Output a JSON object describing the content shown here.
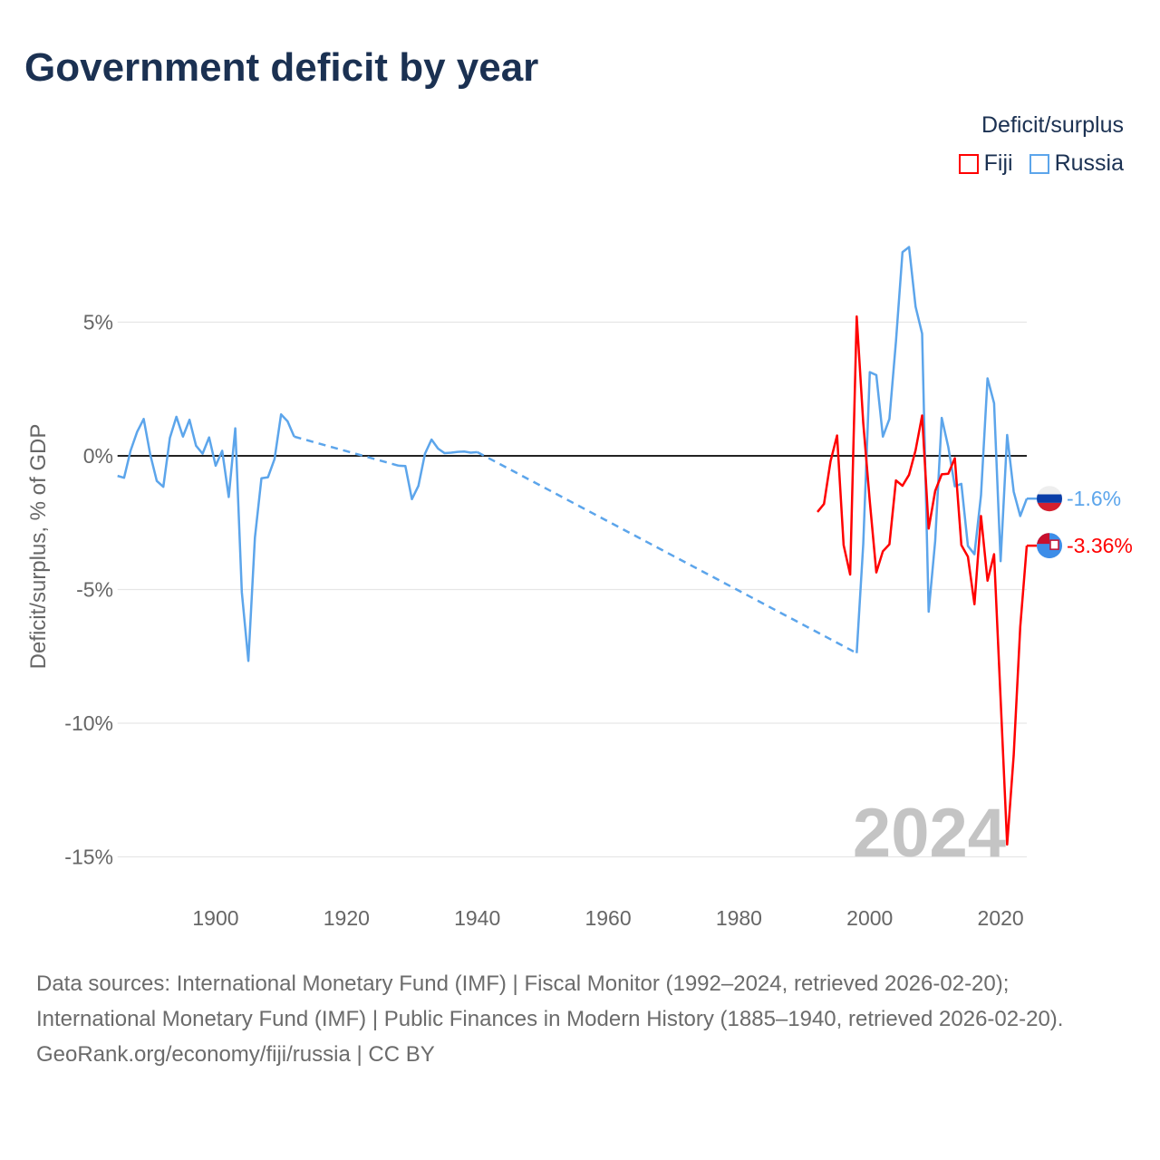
{
  "title": "Government deficit by year",
  "legend": {
    "title": "Deficit/surplus",
    "items": [
      {
        "name": "Fiji",
        "color": "#ff0000"
      },
      {
        "name": "Russia",
        "color": "#5ca5eb"
      }
    ]
  },
  "footer": {
    "sources": "Data sources: International Monetary Fund (IMF) | Fiscal Monitor (1992–2024, retrieved 2026-02-20); International Monetary Fund (IMF) | Public Finances in Modern History (1885–1940, retrieved 2026-02-20).",
    "credit": "GeoRank.org/economy/fiji/russia | CC BY"
  },
  "chart_data": {
    "type": "line",
    "title": "Government deficit by year",
    "xlabel": "",
    "ylabel": "Deficit/surplus, % of GDP",
    "xlim": [
      1885,
      2024
    ],
    "ylim": [
      -15,
      7.8
    ],
    "x_ticks": [
      1900,
      1920,
      1940,
      1960,
      1980,
      2000,
      2020
    ],
    "x_tick_labels": [
      "1900",
      "1920",
      "1940",
      "1960",
      "1980",
      "2000",
      "2020"
    ],
    "y_ticks": [
      5,
      0,
      -5,
      -10,
      -15
    ],
    "y_tick_labels": [
      "5%",
      "0%",
      "-5%",
      "-10%",
      "-15%"
    ],
    "grid": true,
    "watermark_year": "2024",
    "legend_position": "top-right",
    "series": [
      {
        "name": "Russia",
        "color": "#5ca5eb",
        "end_label": "-1.6%",
        "points": [
          [
            1885,
            -0.75
          ],
          [
            1886,
            -0.82
          ],
          [
            1887,
            0.2
          ],
          [
            1888,
            0.9
          ],
          [
            1889,
            1.38
          ],
          [
            1890,
            0.05
          ],
          [
            1891,
            -0.94
          ],
          [
            1892,
            -1.16
          ],
          [
            1893,
            0.67
          ],
          [
            1894,
            1.46
          ],
          [
            1895,
            0.72
          ],
          [
            1896,
            1.35
          ],
          [
            1897,
            0.38
          ],
          [
            1898,
            0.08
          ],
          [
            1899,
            0.69
          ],
          [
            1900,
            -0.37
          ],
          [
            1901,
            0.19
          ],
          [
            1902,
            -1.54
          ],
          [
            1903,
            1.03
          ],
          [
            1904,
            -5.1
          ],
          [
            1905,
            -7.67
          ],
          [
            1906,
            -3.06
          ],
          [
            1907,
            -0.84
          ],
          [
            1908,
            -0.8
          ],
          [
            1909,
            -0.12
          ],
          [
            1910,
            1.55
          ],
          [
            1911,
            1.29
          ],
          [
            1912,
            0.72
          ],
          [
            1928,
            -0.37
          ],
          [
            1929,
            -0.38
          ],
          [
            1930,
            -1.62
          ],
          [
            1931,
            -1.12
          ],
          [
            1932,
            0.08
          ],
          [
            1933,
            0.61
          ],
          [
            1934,
            0.27
          ],
          [
            1935,
            0.1
          ],
          [
            1936,
            0.12
          ],
          [
            1937,
            0.15
          ],
          [
            1938,
            0.16
          ],
          [
            1939,
            0.12
          ],
          [
            1940,
            0.14
          ],
          [
            1998,
            -7.38
          ],
          [
            1999,
            -3.3
          ],
          [
            2000,
            3.13
          ],
          [
            2001,
            3.02
          ],
          [
            2002,
            0.72
          ],
          [
            2003,
            1.38
          ],
          [
            2004,
            4.28
          ],
          [
            2005,
            7.62
          ],
          [
            2006,
            7.81
          ],
          [
            2007,
            5.58
          ],
          [
            2008,
            4.57
          ],
          [
            2009,
            -5.83
          ],
          [
            2010,
            -3.18
          ],
          [
            2011,
            1.42
          ],
          [
            2012,
            0.33
          ],
          [
            2013,
            -1.14
          ],
          [
            2014,
            -1.05
          ],
          [
            2015,
            -3.37
          ],
          [
            2016,
            -3.68
          ],
          [
            2017,
            -1.48
          ],
          [
            2018,
            2.9
          ],
          [
            2019,
            1.97
          ],
          [
            2020,
            -3.94
          ],
          [
            2021,
            0.78
          ],
          [
            2022,
            -1.34
          ],
          [
            2023,
            -2.25
          ],
          [
            2024,
            -1.6
          ]
        ]
      },
      {
        "name": "Fiji",
        "color": "#ff0000",
        "end_label": "-3.36%",
        "points": [
          [
            1992,
            -2.1
          ],
          [
            1993,
            -1.8
          ],
          [
            1994,
            -0.2
          ],
          [
            1995,
            0.76
          ],
          [
            1996,
            -3.34
          ],
          [
            1997,
            -4.44
          ],
          [
            1998,
            5.21
          ],
          [
            1999,
            1.23
          ],
          [
            2000,
            -1.7
          ],
          [
            2001,
            -4.36
          ],
          [
            2002,
            -3.57
          ],
          [
            2003,
            -3.31
          ],
          [
            2004,
            -0.92
          ],
          [
            2005,
            -1.12
          ],
          [
            2006,
            -0.71
          ],
          [
            2007,
            0.21
          ],
          [
            2008,
            1.51
          ],
          [
            2009,
            -2.72
          ],
          [
            2010,
            -1.31
          ],
          [
            2011,
            -0.69
          ],
          [
            2012,
            -0.67
          ],
          [
            2013,
            -0.09
          ],
          [
            2014,
            -3.34
          ],
          [
            2015,
            -3.77
          ],
          [
            2016,
            -5.55
          ],
          [
            2017,
            -2.25
          ],
          [
            2018,
            -4.67
          ],
          [
            2019,
            -3.68
          ],
          [
            2020,
            -9.1
          ],
          [
            2021,
            -14.54
          ],
          [
            2022,
            -11.2
          ],
          [
            2023,
            -6.4
          ],
          [
            2024,
            -3.36
          ]
        ]
      }
    ]
  }
}
